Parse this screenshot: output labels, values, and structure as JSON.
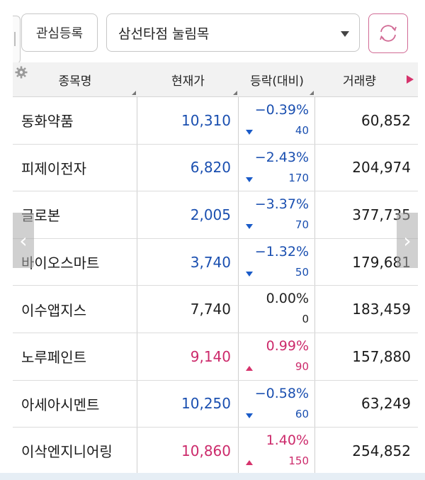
{
  "toolbar": {
    "register_label": "관심등록",
    "group_select_value": "삼선타점 눌림목"
  },
  "table": {
    "headers": [
      "종목명",
      "현재가",
      "등락(대비)",
      "거래량"
    ],
    "rows": [
      {
        "name": "동화약품",
        "price": "10,310",
        "pct": "−0.39%",
        "diff": "40",
        "dir": "down",
        "volume": "60,852"
      },
      {
        "name": "피제이전자",
        "price": "6,820",
        "pct": "−2.43%",
        "diff": "170",
        "dir": "down",
        "volume": "204,974"
      },
      {
        "name": "글로본",
        "price": "2,005",
        "pct": "−3.37%",
        "diff": "70",
        "dir": "down",
        "volume": "377,735"
      },
      {
        "name": "바이오스마트",
        "price": "3,740",
        "pct": "−1.32%",
        "diff": "50",
        "dir": "down",
        "volume": "179,681"
      },
      {
        "name": "이수앱지스",
        "price": "7,740",
        "pct": "0.00%",
        "diff": "0",
        "dir": "flat",
        "volume": "183,459"
      },
      {
        "name": "노루페인트",
        "price": "9,140",
        "pct": "0.99%",
        "diff": "90",
        "dir": "up",
        "volume": "157,880"
      },
      {
        "name": "아세아시멘트",
        "price": "10,250",
        "pct": "−0.58%",
        "diff": "60",
        "dir": "down",
        "volume": "63,249"
      },
      {
        "name": "이삭엔지니어링",
        "price": "10,860",
        "pct": "1.40%",
        "diff": "150",
        "dir": "up",
        "volume": "254,852"
      }
    ]
  },
  "colors": {
    "up": "#cc2a6b",
    "down": "#1a4fb0",
    "flat": "#222222",
    "accent": "#d16b95"
  },
  "icons": {
    "settings": "gear-icon",
    "refresh": "refresh-icon",
    "more": "play-right-icon",
    "prev": "chevron-left-icon",
    "next": "chevron-right-icon"
  }
}
